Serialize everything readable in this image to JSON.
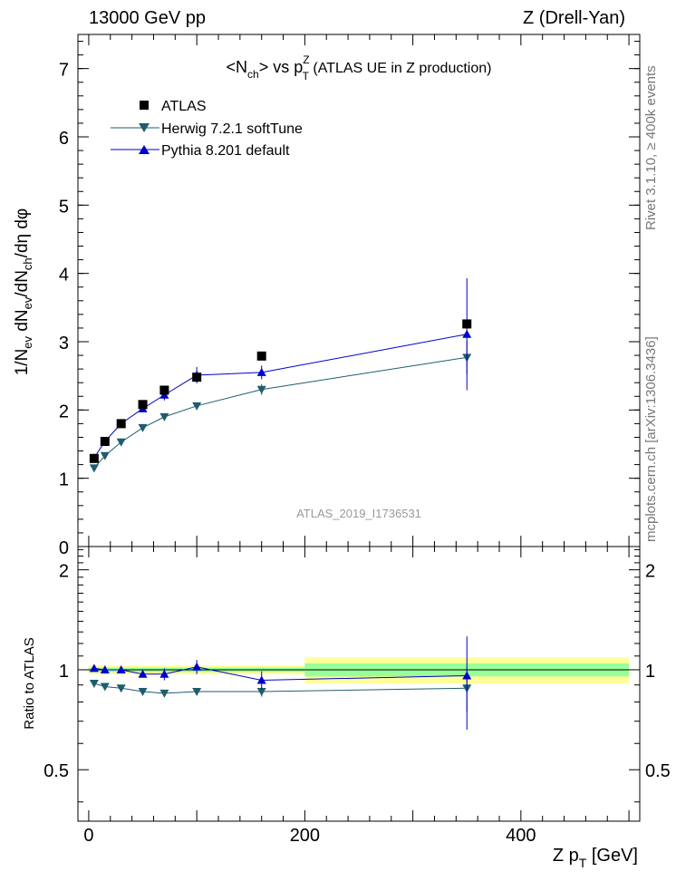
{
  "header": {
    "energy_label": "13000 GeV pp",
    "process_label": "Z (Drell-Yan)"
  },
  "side_labels": {
    "rivet": "Rivet 3.1.10, ≥ 400k events",
    "mcplots": "mcplots.cern.ch [arXiv:1306.3436]"
  },
  "colors": {
    "atlas": "#000000",
    "herwig": "#1f5c6e",
    "pythia": "#0000cc",
    "band_outer": "#ffff80",
    "band_inner": "#80ff80",
    "ratio_band_outer": "#ffff99",
    "ratio_band_inner": "#99ff99"
  },
  "chart_data": [
    {
      "type": "scatter",
      "panel": "main",
      "title_parts": {
        "pre": "<N",
        "sub1": "ch",
        "mid": "> vs p",
        "sup": "Z",
        "sub2": "T",
        "post": " (ATLAS UE in Z production)"
      },
      "ylabel": "1/N_ev dN_ev/dN_ch/dη dφ",
      "ylim": [
        0,
        7.5
      ],
      "y_ticks": [
        0,
        1,
        2,
        3,
        4,
        5,
        6,
        7
      ],
      "xlim": [
        -10,
        510
      ],
      "watermark": "ATLAS_2019_I1736531",
      "legend": {
        "placement": "top-left",
        "entries": [
          "ATLAS",
          "Herwig 7.2.1 softTune",
          "Pythia 8.201 default"
        ]
      },
      "series": [
        {
          "name": "ATLAS",
          "marker": "square",
          "x": [
            5,
            15,
            30,
            50,
            70,
            100,
            160,
            350
          ],
          "y": [
            1.29,
            1.54,
            1.8,
            2.08,
            2.29,
            2.48,
            2.79,
            3.26
          ]
        },
        {
          "name": "Herwig 7.2.1 softTune",
          "marker": "triangle-down",
          "x": [
            5,
            15,
            30,
            50,
            70,
            100,
            160,
            350
          ],
          "y": [
            1.15,
            1.33,
            1.53,
            1.74,
            1.9,
            2.06,
            2.3,
            2.77
          ],
          "yerr": [
            0.01,
            0.02,
            0.02,
            0.03,
            0.04,
            0.04,
            0.08,
            0.24
          ]
        },
        {
          "name": "Pythia 8.201 default",
          "marker": "triangle-up",
          "x": [
            5,
            15,
            30,
            50,
            70,
            100,
            160,
            350
          ],
          "y": [
            1.3,
            1.54,
            1.8,
            2.02,
            2.22,
            2.51,
            2.55,
            3.11
          ],
          "yerr": [
            0.02,
            0.03,
            0.04,
            0.05,
            0.08,
            0.12,
            0.1,
            0.82
          ]
        }
      ]
    },
    {
      "type": "scatter",
      "panel": "ratio",
      "ylabel": "Ratio to ATLAS",
      "ylim": [
        0.35,
        2.35
      ],
      "y_ticks": [
        0.5,
        1,
        2
      ],
      "y_tick_labels": [
        "0.5",
        "1",
        "2"
      ],
      "xlim": [
        -10,
        510
      ],
      "x_ticks": [
        0,
        200,
        400
      ],
      "x_tick_labels": [
        "0",
        "200",
        "400"
      ],
      "xlabel_parts": {
        "pre": "Z p",
        "sub": "T",
        "post": " [GeV]"
      },
      "bands": [
        {
          "x": [
            0,
            200
          ],
          "outer": [
            0.97,
            1.03
          ],
          "inner": [
            0.985,
            1.015
          ]
        },
        {
          "x": [
            200,
            500
          ],
          "outer": [
            0.91,
            1.09
          ],
          "inner": [
            0.955,
            1.045
          ]
        }
      ],
      "series": [
        {
          "name": "Herwig 7.2.1 softTune",
          "marker": "triangle-down",
          "x": [
            5,
            15,
            30,
            50,
            70,
            100,
            160,
            350
          ],
          "y": [
            0.91,
            0.89,
            0.88,
            0.86,
            0.85,
            0.86,
            0.86,
            0.88
          ],
          "yerr": [
            0.01,
            0.01,
            0.01,
            0.01,
            0.01,
            0.02,
            0.03,
            0.13
          ]
        },
        {
          "name": "Pythia 8.201 default",
          "marker": "triangle-up",
          "x": [
            5,
            15,
            30,
            50,
            70,
            100,
            160,
            350
          ],
          "y": [
            1.01,
            1.0,
            1.0,
            0.97,
            0.97,
            1.02,
            0.93,
            0.96
          ],
          "yerr": [
            0.01,
            0.01,
            0.02,
            0.02,
            0.04,
            0.05,
            0.06,
            0.3
          ]
        }
      ]
    }
  ]
}
